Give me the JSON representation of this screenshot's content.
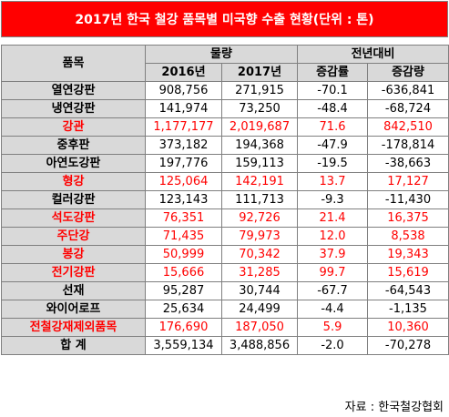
{
  "title": "2017년 한국 철강 품목별 미국향 수출 현황(단위 : 톤)",
  "headers": {
    "item": "품목",
    "volume": "물량",
    "yoy": "전년대비",
    "y2016": "2016년",
    "y2017": "2017년",
    "rate": "증감률",
    "amount": "증감량"
  },
  "rows": [
    {
      "name": "열연강판",
      "v2016": "908,756",
      "v2017": "271,915",
      "rate": "-70.1",
      "amount": "-636,841",
      "highlight": false
    },
    {
      "name": "냉연강판",
      "v2016": "141,974",
      "v2017": "73,250",
      "rate": "-48.4",
      "amount": "-68,724",
      "highlight": false
    },
    {
      "name": "강관",
      "v2016": "1,177,177",
      "v2017": "2,019,687",
      "rate": "71.6",
      "amount": "842,510",
      "highlight": true
    },
    {
      "name": "중후판",
      "v2016": "373,182",
      "v2017": "194,368",
      "rate": "-47.9",
      "amount": "-178,814",
      "highlight": false
    },
    {
      "name": "아연도강판",
      "v2016": "197,776",
      "v2017": "159,113",
      "rate": "-19.5",
      "amount": "-38,663",
      "highlight": false
    },
    {
      "name": "형강",
      "v2016": "125,064",
      "v2017": "142,191",
      "rate": "13.7",
      "amount": "17,127",
      "highlight": true
    },
    {
      "name": "컬러강판",
      "v2016": "123,143",
      "v2017": "111,713",
      "rate": "-9.3",
      "amount": "-11,430",
      "highlight": false
    },
    {
      "name": "석도강판",
      "v2016": "76,351",
      "v2017": "92,726",
      "rate": "21.4",
      "amount": "16,375",
      "highlight": true
    },
    {
      "name": "주단강",
      "v2016": "71,435",
      "v2017": "79,973",
      "rate": "12.0",
      "amount": "8,538",
      "highlight": true
    },
    {
      "name": "봉강",
      "v2016": "50,999",
      "v2017": "70,342",
      "rate": "37.9",
      "amount": "19,343",
      "highlight": true
    },
    {
      "name": "전기강판",
      "v2016": "15,666",
      "v2017": "31,285",
      "rate": "99.7",
      "amount": "15,619",
      "highlight": true
    },
    {
      "name": "선재",
      "v2016": "95,287",
      "v2017": "30,744",
      "rate": "-67.7",
      "amount": "-64,543",
      "highlight": false
    },
    {
      "name": "와이어로프",
      "v2016": "25,634",
      "v2017": "24,499",
      "rate": "-4.4",
      "amount": "-1,135",
      "highlight": false
    },
    {
      "name": "전철강재제외품목",
      "v2016": "176,690",
      "v2017": "187,050",
      "rate": "5.9",
      "amount": "10,360",
      "highlight": true
    }
  ],
  "total": {
    "name": "합 계",
    "v2016": "3,559,134",
    "v2017": "3,488,856",
    "rate": "-2.0",
    "amount": "-70,278"
  },
  "source": "자료 : 한국철강협회"
}
